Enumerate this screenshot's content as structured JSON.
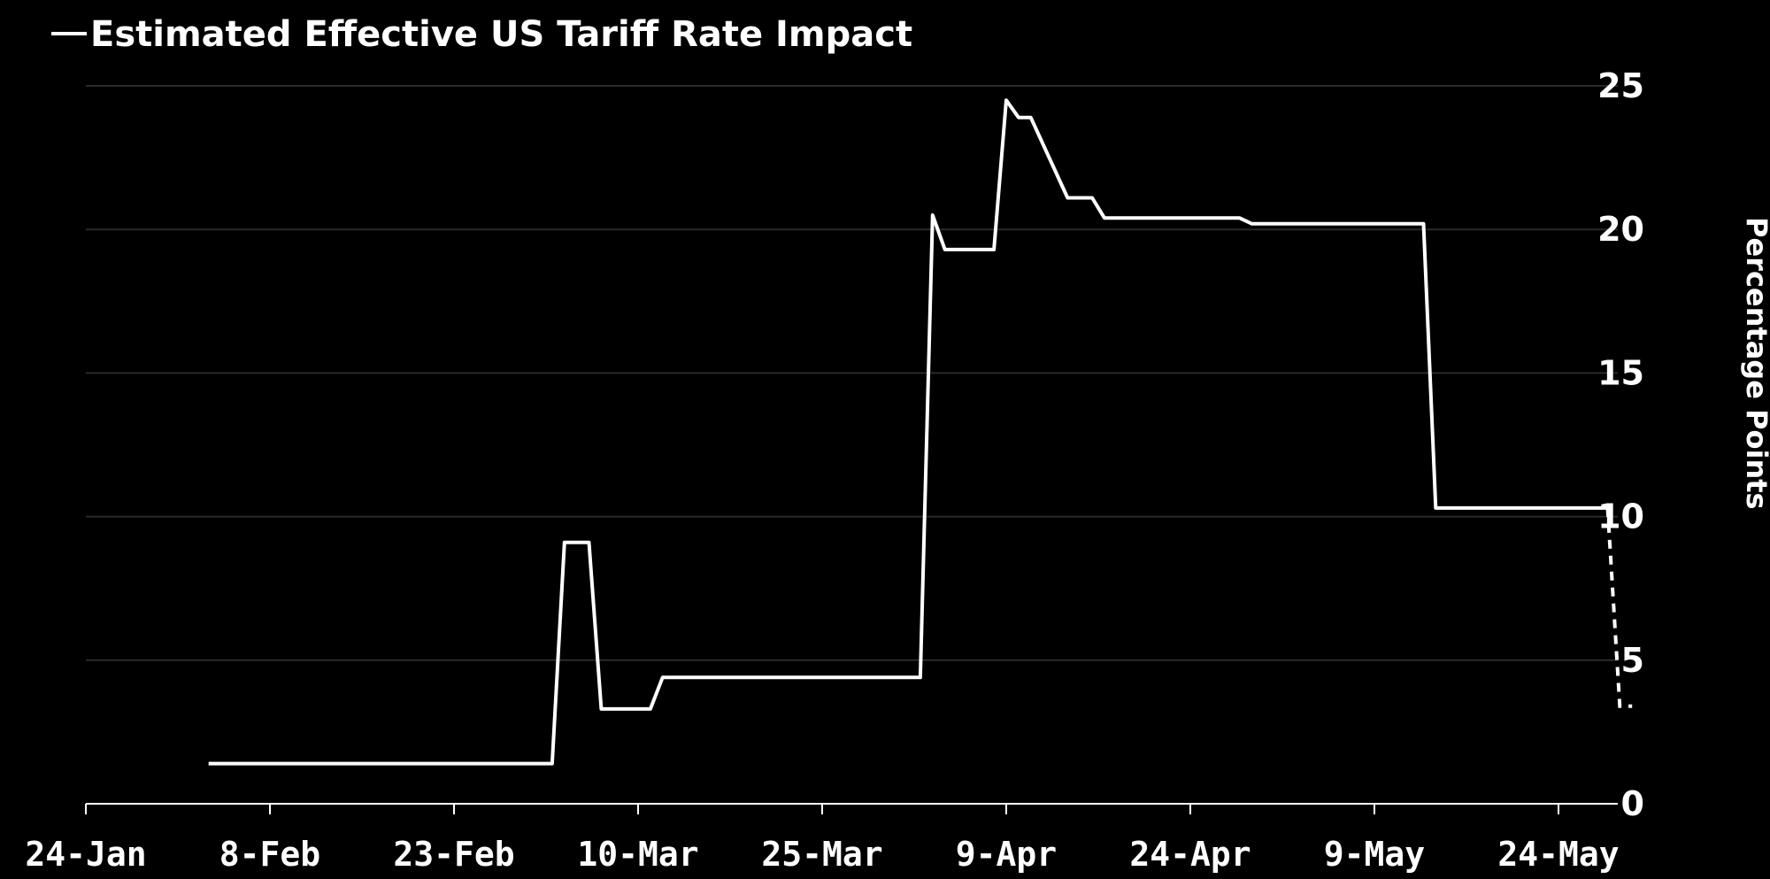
{
  "chart_data": {
    "type": "line",
    "legend": {
      "label": "Estimated Effective US Tariff Rate Impact",
      "position": "top-left"
    },
    "xlabel": "",
    "ylabel": "Percentage Points",
    "ylim": [
      0,
      25
    ],
    "yticks": [
      0,
      5,
      10,
      15,
      20,
      25
    ],
    "y_axis_side": "right",
    "grid": true,
    "xlim": [
      "2025-01-24",
      "2025-05-31"
    ],
    "xtick_labels": [
      {
        "date": "2025-01-24",
        "label": "24-Jan"
      },
      {
        "date": "2025-02-08",
        "label": "8-Feb"
      },
      {
        "date": "2025-02-23",
        "label": "23-Feb"
      },
      {
        "date": "2025-03-10",
        "label": "10-Mar"
      },
      {
        "date": "2025-03-25",
        "label": "25-Mar"
      },
      {
        "date": "2025-04-09",
        "label": "9-Apr"
      },
      {
        "date": "2025-04-24",
        "label": "24-Apr"
      },
      {
        "date": "2025-05-09",
        "label": "9-May"
      },
      {
        "date": "2025-05-24",
        "label": "24-May"
      }
    ],
    "series": [
      {
        "name": "Estimated Effective US Tariff Rate Impact",
        "color": "#ffffff",
        "style": "solid",
        "points": [
          {
            "x": "2025-02-03",
            "y": 1.4
          },
          {
            "x": "2025-03-03",
            "y": 1.4
          },
          {
            "x": "2025-03-04",
            "y": 9.1
          },
          {
            "x": "2025-03-06",
            "y": 9.1
          },
          {
            "x": "2025-03-07",
            "y": 3.3
          },
          {
            "x": "2025-03-11",
            "y": 3.3
          },
          {
            "x": "2025-03-12",
            "y": 4.4
          },
          {
            "x": "2025-04-02",
            "y": 4.4
          },
          {
            "x": "2025-04-03",
            "y": 20.5
          },
          {
            "x": "2025-04-04",
            "y": 19.3
          },
          {
            "x": "2025-04-08",
            "y": 19.3
          },
          {
            "x": "2025-04-09",
            "y": 24.5
          },
          {
            "x": "2025-04-10",
            "y": 23.9
          },
          {
            "x": "2025-04-11",
            "y": 23.9
          },
          {
            "x": "2025-04-14",
            "y": 21.1
          },
          {
            "x": "2025-04-16",
            "y": 21.1
          },
          {
            "x": "2025-04-17",
            "y": 20.4
          },
          {
            "x": "2025-04-28",
            "y": 20.4
          },
          {
            "x": "2025-04-29",
            "y": 20.2
          },
          {
            "x": "2025-05-13",
            "y": 20.2
          },
          {
            "x": "2025-05-14",
            "y": 10.3
          },
          {
            "x": "2025-05-28",
            "y": 10.3
          }
        ]
      },
      {
        "name": "",
        "color": "#ffffff",
        "style": "dashed",
        "points": [
          {
            "x": "2025-05-28",
            "y": 10.3
          },
          {
            "x": "2025-05-29",
            "y": 3.4
          },
          {
            "x": "2025-05-30",
            "y": 3.4
          }
        ]
      }
    ]
  }
}
